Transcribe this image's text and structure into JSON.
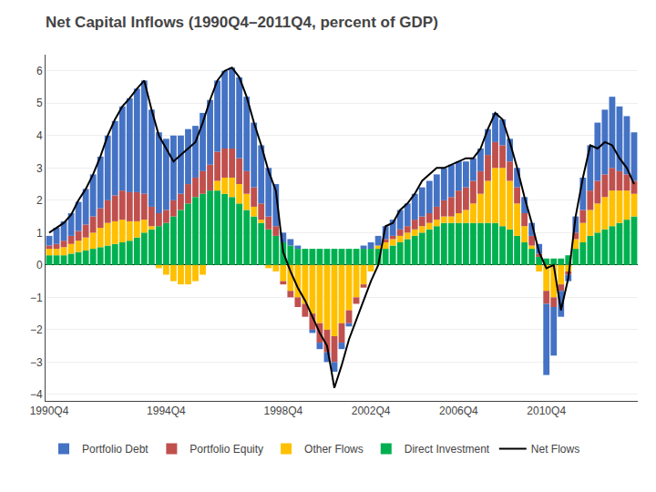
{
  "chart_data": {
    "type": "bar",
    "title": "Net Capital Inflows (1990Q4–2011Q4, percent of GDP)",
    "stacked": true,
    "grid": true,
    "categories": [
      "1990Q4",
      null,
      null,
      null,
      null,
      null,
      null,
      null,
      null,
      null,
      null,
      null,
      null,
      null,
      null,
      null,
      "1994Q4",
      null,
      null,
      null,
      null,
      null,
      null,
      null,
      null,
      null,
      null,
      null,
      null,
      null,
      null,
      null,
      "1998Q4",
      null,
      null,
      null,
      null,
      null,
      null,
      null,
      null,
      null,
      null,
      null,
      "2002Q4",
      null,
      null,
      null,
      null,
      null,
      null,
      null,
      null,
      null,
      null,
      null,
      "2006Q4",
      null,
      null,
      null,
      null,
      null,
      null,
      null,
      null,
      null,
      null,
      null,
      "2010Q4",
      null,
      null,
      null,
      null,
      null,
      null,
      null,
      null,
      null,
      null,
      null,
      null
    ],
    "ylim": [
      -4.2,
      6.5
    ],
    "yticks": [
      -4,
      -3,
      -2,
      -1,
      0,
      1,
      2,
      3,
      4,
      5,
      6
    ],
    "series": [
      {
        "name": "Direct Investment",
        "type": "bar",
        "color": "#00b050",
        "values": [
          0.3,
          0.3,
          0.3,
          0.35,
          0.4,
          0.45,
          0.5,
          0.55,
          0.6,
          0.65,
          0.7,
          0.75,
          0.85,
          1.0,
          1.1,
          1.2,
          1.3,
          1.5,
          1.7,
          1.9,
          2.1,
          2.2,
          2.3,
          2.3,
          2.2,
          2.1,
          1.9,
          1.7,
          1.5,
          1.3,
          1.1,
          0.9,
          0.7,
          0.6,
          0.5,
          0.5,
          0.5,
          0.5,
          0.5,
          0.5,
          0.5,
          0.5,
          0.5,
          0.5,
          0.5,
          0.5,
          0.5,
          0.6,
          0.7,
          0.8,
          0.9,
          1.0,
          1.1,
          1.2,
          1.3,
          1.3,
          1.3,
          1.3,
          1.3,
          1.3,
          1.3,
          1.3,
          1.2,
          1.1,
          0.9,
          0.7,
          0.5,
          0.25,
          0.2,
          0.2,
          0.2,
          0.3,
          0.5,
          0.7,
          0.9,
          1.0,
          1.1,
          1.2,
          1.3,
          1.4,
          1.5
        ]
      },
      {
        "name": "Other Flows",
        "type": "bar",
        "color": "#ffc000",
        "values": [
          0.2,
          0.2,
          0.25,
          0.3,
          0.35,
          0.4,
          0.5,
          0.6,
          0.7,
          0.7,
          0.7,
          0.6,
          0.5,
          0.4,
          0.1,
          -0.1,
          -0.3,
          -0.5,
          -0.6,
          -0.6,
          -0.5,
          -0.3,
          0.0,
          0.3,
          0.5,
          0.6,
          0.6,
          0.5,
          0.3,
          0.1,
          -0.1,
          -0.2,
          -0.5,
          -0.8,
          -1.0,
          -1.2,
          -1.5,
          -1.8,
          -2.0,
          -2.2,
          -1.8,
          -1.4,
          -1.0,
          -0.6,
          -0.2,
          0.1,
          0.2,
          0.2,
          0.2,
          0.2,
          0.2,
          0.2,
          0.2,
          0.2,
          0.2,
          0.2,
          0.3,
          0.4,
          0.6,
          0.9,
          1.3,
          1.7,
          1.8,
          1.5,
          1.0,
          0.5,
          0.1,
          -0.2,
          -0.8,
          -1.0,
          -0.6,
          -0.2,
          0.3,
          0.6,
          0.8,
          0.9,
          1.0,
          1.1,
          1.0,
          0.9,
          0.7
        ]
      },
      {
        "name": "Portfolio Equity",
        "type": "bar",
        "color": "#c0504d",
        "values": [
          0.1,
          0.15,
          0.2,
          0.25,
          0.3,
          0.4,
          0.5,
          0.6,
          0.7,
          0.8,
          0.9,
          0.9,
          0.9,
          0.8,
          0.6,
          0.4,
          0.4,
          0.5,
          0.5,
          0.6,
          0.6,
          0.7,
          0.8,
          0.9,
          0.9,
          0.9,
          0.8,
          0.7,
          0.6,
          0.5,
          0.4,
          0.3,
          -0.1,
          -0.2,
          -0.3,
          -0.4,
          -0.5,
          -0.6,
          -0.7,
          -0.8,
          -0.6,
          -0.4,
          -0.2,
          -0.1,
          0.0,
          0.0,
          0.1,
          0.1,
          0.2,
          0.2,
          0.3,
          0.3,
          0.3,
          0.4,
          0.5,
          0.6,
          0.7,
          0.7,
          0.7,
          0.7,
          0.8,
          0.8,
          0.7,
          0.6,
          0.5,
          0.4,
          0.3,
          0.1,
          -0.4,
          -0.3,
          -0.2,
          -0.1,
          0.2,
          0.4,
          0.6,
          0.7,
          0.7,
          0.7,
          0.6,
          0.5,
          0.4
        ]
      },
      {
        "name": "Portfolio Debt",
        "type": "bar",
        "color": "#4472c4",
        "values": [
          0.3,
          0.5,
          0.6,
          0.7,
          0.9,
          1.1,
          1.3,
          1.6,
          2.0,
          2.3,
          2.6,
          2.9,
          3.2,
          3.5,
          3.0,
          2.5,
          2.2,
          2.0,
          1.8,
          1.7,
          1.6,
          1.8,
          2.0,
          2.2,
          2.4,
          2.5,
          2.5,
          2.3,
          2.0,
          1.8,
          1.5,
          1.3,
          0.3,
          0.2,
          0.1,
          0.0,
          -0.1,
          -0.2,
          -0.3,
          -0.3,
          -0.2,
          -0.1,
          0.0,
          0.1,
          0.2,
          0.3,
          0.4,
          0.5,
          0.6,
          0.7,
          0.8,
          0.9,
          1.0,
          1.0,
          1.0,
          1.0,
          0.9,
          0.8,
          0.7,
          0.7,
          0.8,
          0.9,
          0.8,
          0.7,
          0.6,
          0.5,
          0.4,
          0.3,
          -2.2,
          -1.5,
          -0.8,
          -0.2,
          0.5,
          1.0,
          1.4,
          1.8,
          2.0,
          2.2,
          2.0,
          1.8,
          1.5
        ]
      },
      {
        "name": "Net Flows",
        "type": "line",
        "color": "#000000",
        "values": [
          1.0,
          1.15,
          1.3,
          1.55,
          2.0,
          2.35,
          2.8,
          3.35,
          4.0,
          4.5,
          4.9,
          5.15,
          5.45,
          5.7,
          4.8,
          4.0,
          3.6,
          3.2,
          3.4,
          3.6,
          3.8,
          4.4,
          5.1,
          5.7,
          6.0,
          6.1,
          5.8,
          5.2,
          4.4,
          3.7,
          2.9,
          2.3,
          0.4,
          -0.2,
          -0.7,
          -1.1,
          -1.6,
          -2.1,
          -2.5,
          -3.8,
          -3.1,
          -2.3,
          -1.7,
          -1.1,
          -0.5,
          0.0,
          1.2,
          1.3,
          1.7,
          1.9,
          2.2,
          2.6,
          2.8,
          3.0,
          3.0,
          3.1,
          3.2,
          3.3,
          3.3,
          3.6,
          4.2,
          4.7,
          4.5,
          3.8,
          3.0,
          2.1,
          1.3,
          0.4,
          -0.1,
          0.0,
          -1.4,
          -0.4,
          1.5,
          2.7,
          3.7,
          3.6,
          3.8,
          3.7,
          3.3,
          3.0,
          2.5
        ]
      }
    ]
  }
}
